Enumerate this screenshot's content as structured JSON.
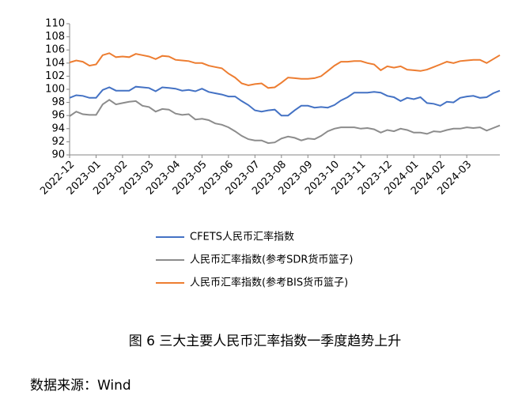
{
  "chart_data": {
    "type": "line",
    "categories": [
      "2022-12",
      null,
      null,
      null,
      "2023-01",
      null,
      null,
      null,
      "2023-02",
      null,
      null,
      null,
      "2023-03",
      null,
      null,
      null,
      "2023-04",
      null,
      null,
      null,
      "2023-05",
      null,
      null,
      null,
      "2023-06",
      null,
      null,
      null,
      "2023-07",
      null,
      null,
      null,
      "2023-08",
      null,
      null,
      null,
      "2023-09",
      null,
      null,
      null,
      "2023-10",
      null,
      null,
      null,
      "2023-11",
      null,
      null,
      null,
      "2023-12",
      null,
      null,
      null,
      "2024-01",
      null,
      null,
      null,
      "2024-02",
      null,
      null,
      null,
      "2024-03",
      null,
      null,
      null,
      null,
      null
    ],
    "series": [
      {
        "name": "CFETS人民币汇率指数",
        "color": "#4472c4",
        "values": [
          98.7,
          99.1,
          99.0,
          98.7,
          98.7,
          99.9,
          100.3,
          99.8,
          99.8,
          99.8,
          100.4,
          100.3,
          100.2,
          99.7,
          100.3,
          100.2,
          100.1,
          99.8,
          99.9,
          99.7,
          100.1,
          99.6,
          99.4,
          99.2,
          98.9,
          98.9,
          98.2,
          97.6,
          96.8,
          96.6,
          96.8,
          96.9,
          96.0,
          96.0,
          96.8,
          97.5,
          97.5,
          97.2,
          97.3,
          97.2,
          97.6,
          98.3,
          98.8,
          99.5,
          99.5,
          99.5,
          99.6,
          99.5,
          99.0,
          98.8,
          98.2,
          98.7,
          98.5,
          98.8,
          97.9,
          97.8,
          97.5,
          98.1,
          98.0,
          98.7,
          98.9,
          99.0,
          98.7,
          98.8,
          99.4,
          99.8
        ]
      },
      {
        "name": "人民币汇率指数(参考SDR货币篮子)",
        "color": "#8c8c8c",
        "values": [
          95.9,
          96.6,
          96.2,
          96.1,
          96.1,
          97.7,
          98.4,
          97.7,
          97.9,
          98.1,
          98.2,
          97.5,
          97.3,
          96.6,
          97.0,
          96.9,
          96.3,
          96.1,
          96.2,
          95.4,
          95.5,
          95.3,
          94.8,
          94.6,
          94.2,
          93.6,
          92.9,
          92.4,
          92.2,
          92.2,
          91.8,
          91.9,
          92.5,
          92.8,
          92.6,
          92.2,
          92.5,
          92.4,
          92.9,
          93.6,
          94.0,
          94.2,
          94.2,
          94.2,
          94.0,
          94.1,
          93.9,
          93.4,
          93.8,
          93.6,
          94.0,
          93.8,
          93.4,
          93.4,
          93.2,
          93.6,
          93.5,
          93.8,
          94.0,
          94.0,
          94.2,
          94.1,
          94.2,
          93.7,
          94.1,
          94.5
        ]
      },
      {
        "name": "人民币汇率指数(参考BIS货币篮子)",
        "color": "#ed7d31",
        "values": [
          104.1,
          104.4,
          104.2,
          103.6,
          103.8,
          105.2,
          105.5,
          104.9,
          105.0,
          104.9,
          105.4,
          105.2,
          105.0,
          104.6,
          105.1,
          105.0,
          104.5,
          104.4,
          104.3,
          104.0,
          104.0,
          103.6,
          103.4,
          103.2,
          102.4,
          101.8,
          100.9,
          100.6,
          100.8,
          100.9,
          100.2,
          100.3,
          101.0,
          101.8,
          101.7,
          101.6,
          101.6,
          101.7,
          102.0,
          102.8,
          103.6,
          104.2,
          104.2,
          104.3,
          104.3,
          104.0,
          103.8,
          102.9,
          103.5,
          103.3,
          103.5,
          103.0,
          102.9,
          102.8,
          103.0,
          103.4,
          103.8,
          104.2,
          104.0,
          104.3,
          104.4,
          104.5,
          104.5,
          104.0,
          104.6,
          105.2
        ]
      }
    ],
    "ylim": [
      90,
      110
    ],
    "yticks": [
      90,
      92,
      94,
      96,
      98,
      100,
      102,
      104,
      106,
      108,
      110
    ],
    "grid": false,
    "caption": "图 6 三大主要人民币汇率指数一季度趋势上升",
    "source": "数据来源：Wind"
  }
}
